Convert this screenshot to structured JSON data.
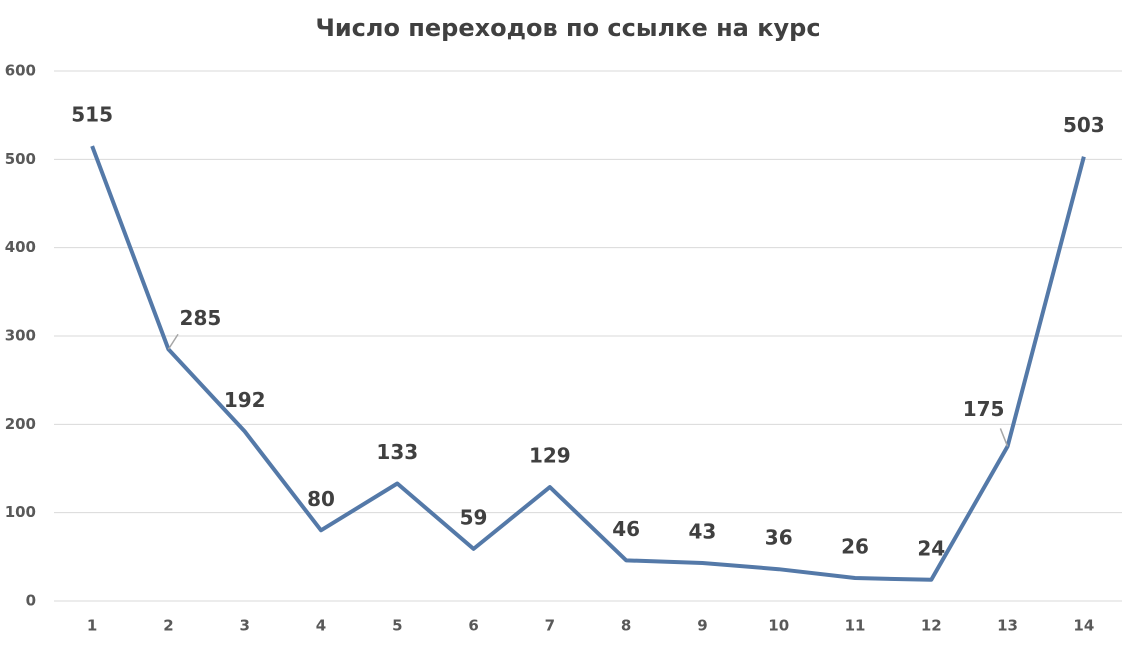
{
  "chart_data": {
    "type": "line",
    "title": "Число переходов по ссылке на курс",
    "categories": [
      "1",
      "2",
      "3",
      "4",
      "5",
      "6",
      "7",
      "8",
      "9",
      "10",
      "11",
      "12",
      "13",
      "14"
    ],
    "values": [
      515,
      285,
      192,
      80,
      133,
      59,
      129,
      46,
      43,
      36,
      26,
      24,
      175,
      503
    ],
    "color": "#5479a8",
    "ylim": [
      0,
      600
    ],
    "yticks": [
      0,
      100,
      200,
      300,
      400,
      500,
      600
    ],
    "grid": true
  }
}
